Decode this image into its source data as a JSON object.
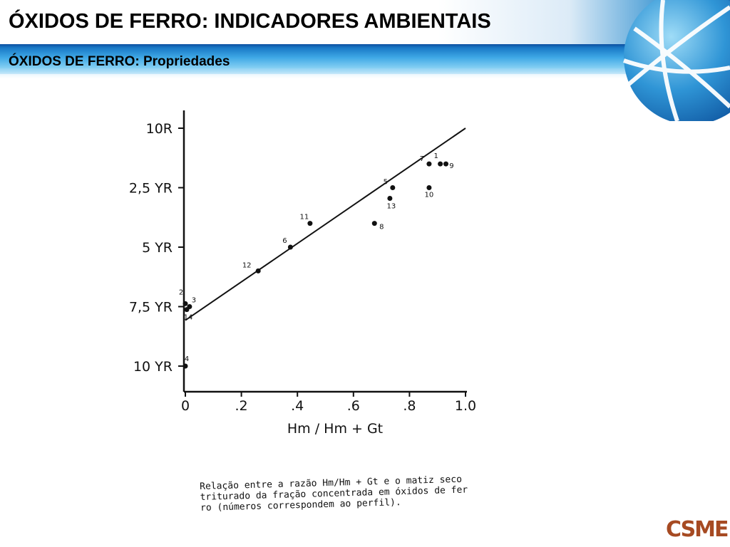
{
  "slide": {
    "title": "ÓXIDOS DE FERRO: INDICADORES AMBIENTAIS",
    "subtitle": "ÓXIDOS DE FERRO: Propriedades",
    "logo_text": "CSME",
    "colors": {
      "band_blue": "#1f78c8",
      "logo_brown": "#a64a22"
    },
    "icons": [
      "globe-icon"
    ]
  },
  "caption": {
    "lines": [
      "Relação entre a razão Hm/Hm + Gt e o matiz seco",
      "triturado da fração concentrada em óxidos de fer",
      "ro (números correspondem ao perfil)."
    ]
  },
  "chart_data": {
    "type": "scatter",
    "xlabel": "Hm / Hm + Gt",
    "ylabel": "",
    "xlim": [
      0,
      1.0
    ],
    "x_ticks": [
      "0",
      ".2",
      ".4",
      ".6",
      ".8",
      "1.0"
    ],
    "x_tick_values": [
      0,
      0.2,
      0.4,
      0.6,
      0.8,
      1.0
    ],
    "y_categories": [
      "10R",
      "2,5 YR",
      "5 YR",
      "7,5 YR",
      "10 YR"
    ],
    "y_tick_positions": [
      0,
      1,
      2,
      3,
      4
    ],
    "y_note": "y in matiz steps: 0 = 10R, 1 = 2,5 YR, 2 = 5 YR, 3 = 7,5 YR, 4 = 10 YR",
    "points": [
      {
        "label": "1",
        "x": 0.91,
        "y": 0.6
      },
      {
        "label": "9",
        "x": 0.93,
        "y": 0.6
      },
      {
        "label": "7",
        "x": 0.87,
        "y": 0.6
      },
      {
        "label": "5",
        "x": 0.74,
        "y": 1.0
      },
      {
        "label": "10",
        "x": 0.87,
        "y": 1.0
      },
      {
        "label": "13",
        "x": 0.73,
        "y": 1.18
      },
      {
        "label": "11",
        "x": 0.445,
        "y": 1.6
      },
      {
        "label": "8",
        "x": 0.675,
        "y": 1.6
      },
      {
        "label": "6",
        "x": 0.375,
        "y": 2.0
      },
      {
        "label": "12",
        "x": 0.26,
        "y": 2.4
      },
      {
        "label": "2",
        "x": 0.0,
        "y": 2.95
      },
      {
        "label": "3",
        "x": 0.015,
        "y": 3.0
      },
      {
        "label": "14",
        "x": 0.005,
        "y": 3.05
      },
      {
        "label": "4",
        "x": 0.0,
        "y": 4.0
      }
    ],
    "trend_line": {
      "x": [
        0,
        1.0
      ],
      "y": [
        3.23,
        0.0
      ]
    },
    "grid": false,
    "legend": "none"
  }
}
